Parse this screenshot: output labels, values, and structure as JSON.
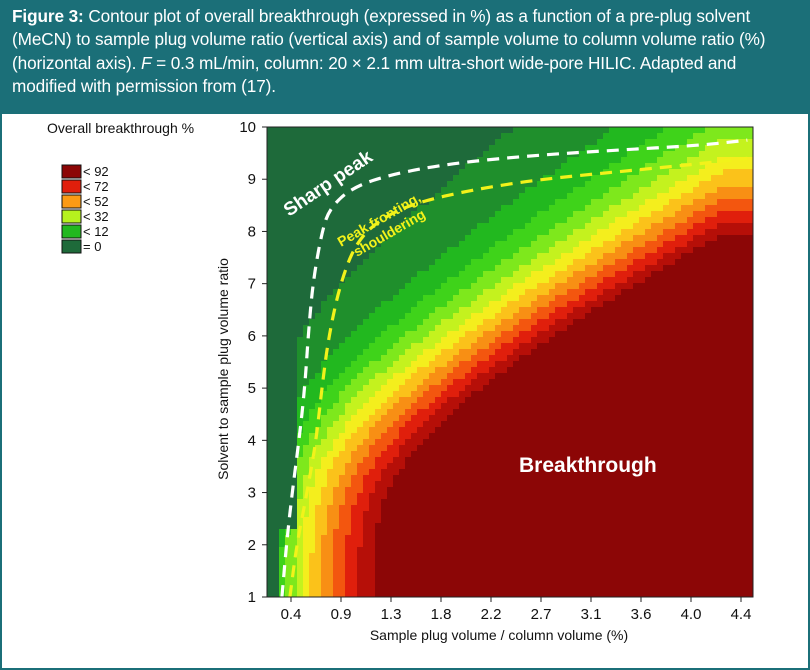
{
  "caption": {
    "figure_label": "Figure 3:",
    "text_part1": "Contour plot of overall breakthrough (expressed in %) as a function of a pre-plug solvent (MeCN) to sample plug volume ratio (vertical axis) and of sample volume to column volume ratio (%) (horizontal axis).",
    "flow_symbol": "F",
    "text_part2": "= 0.3 mL/min, column: 20 × 2.1 mm ultra-short wide-pore HILIC. Adapted and modified with permission from (17)."
  },
  "colors": {
    "frame": "#1b6f78",
    "levels": [
      "#1e6a3a",
      "#1f8f2c",
      "#22b81f",
      "#3fd31a",
      "#7ee81c",
      "#c4f21e",
      "#f4ee1d",
      "#fbc21a",
      "#f88f14",
      "#f3560f",
      "#e01f0c",
      "#b60f08",
      "#8c0606"
    ],
    "sharp_boundary": "#ffffff",
    "fronting_boundary": "#f2f21a"
  },
  "chart_data": {
    "type": "contour",
    "title": "Overall breakthrough %",
    "xlabel": "Sample plug volume / column volume (%)",
    "ylabel": "Solvent to sample plug volume ratio",
    "x_ticks": [
      "0.4",
      "0.9",
      "1.3",
      "1.8",
      "2.2",
      "2.7",
      "3.1",
      "3.6",
      "4.0",
      "4.4"
    ],
    "y_ticks": [
      "1",
      "2",
      "3",
      "4",
      "5",
      "6",
      "7",
      "8",
      "9",
      "10"
    ],
    "xlim": [
      0.2,
      4.45
    ],
    "ylim": [
      1,
      10
    ],
    "legend": {
      "placement": "upper-left",
      "entries": [
        {
          "label": "< 92",
          "color": "#8c0606"
        },
        {
          "label": "< 72",
          "color": "#e01f0c"
        },
        {
          "label": "< 52",
          "color": "#fb9a14"
        },
        {
          "label": "< 32",
          "color": "#b6f21e"
        },
        {
          "label": "< 12",
          "color": "#22b81f"
        },
        {
          "label": "= 0",
          "color": "#1e6a3a"
        }
      ]
    },
    "annotations": [
      {
        "text": "Sharp peak",
        "x": 0.55,
        "y": 8.3
      },
      {
        "text": "Peak fronting,",
        "x": 1.05,
        "y": 8.1
      },
      {
        "text": "shouldering",
        "x": 1.2,
        "y": 7.8
      },
      {
        "text": "Breakthrough",
        "x": 3.05,
        "y": 3.4
      }
    ],
    "boundaries": [
      {
        "name": "sharp-peak-boundary",
        "color": "#ffffff",
        "points": [
          [
            0.33,
            1.0
          ],
          [
            0.37,
            2.0
          ],
          [
            0.42,
            3.0
          ],
          [
            0.48,
            4.0
          ],
          [
            0.53,
            5.0
          ],
          [
            0.56,
            6.0
          ],
          [
            0.6,
            7.0
          ],
          [
            0.68,
            8.0
          ],
          [
            0.75,
            8.45
          ],
          [
            0.95,
            8.85
          ],
          [
            1.3,
            9.1
          ],
          [
            1.8,
            9.3
          ],
          [
            2.5,
            9.45
          ],
          [
            3.2,
            9.55
          ],
          [
            4.0,
            9.65
          ],
          [
            4.4,
            9.75
          ]
        ]
      },
      {
        "name": "fronting-boundary",
        "color": "#f2f21a",
        "points": [
          [
            0.4,
            1.0
          ],
          [
            0.46,
            2.0
          ],
          [
            0.55,
            3.0
          ],
          [
            0.63,
            4.0
          ],
          [
            0.68,
            5.0
          ],
          [
            0.74,
            6.0
          ],
          [
            0.84,
            7.0
          ],
          [
            0.98,
            7.8
          ],
          [
            1.2,
            8.25
          ],
          [
            1.5,
            8.55
          ],
          [
            2.0,
            8.8
          ],
          [
            2.6,
            9.0
          ],
          [
            3.3,
            9.15
          ],
          [
            4.0,
            9.3
          ],
          [
            4.4,
            9.4
          ]
        ]
      }
    ]
  }
}
